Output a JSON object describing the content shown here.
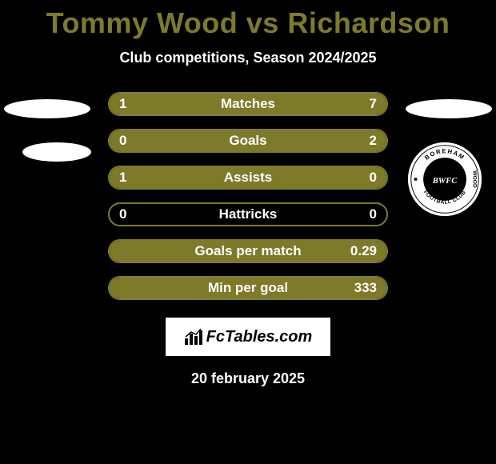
{
  "title": "Tommy Wood vs Richardson",
  "subtitle": "Club competitions, Season 2024/2025",
  "date": "20 february 2025",
  "fctables_label": "FcTables.com",
  "colors": {
    "bar_fill": "#7d7b2a",
    "bar_border": "#7d7b2a",
    "background": "#000000",
    "text": "#ffffff",
    "title_color": "#7d7b2a"
  },
  "stat_rows": [
    {
      "label": "Matches",
      "left_val": "1",
      "right_val": "7",
      "left_pct": 12,
      "right_pct": 88
    },
    {
      "label": "Goals",
      "left_val": "0",
      "right_val": "2",
      "left_pct": 0,
      "right_pct": 100
    },
    {
      "label": "Assists",
      "left_val": "1",
      "right_val": "0",
      "left_pct": 100,
      "right_pct": 0
    },
    {
      "label": "Hattricks",
      "left_val": "0",
      "right_val": "0",
      "left_pct": 0,
      "right_pct": 0
    },
    {
      "label": "Goals per match",
      "left_val": "",
      "right_val": "0.29",
      "left_pct": 0,
      "right_pct": 100
    },
    {
      "label": "Min per goal",
      "left_val": "",
      "right_val": "333",
      "left_pct": 0,
      "right_pct": 100
    }
  ],
  "club_badge": {
    "outer_text_top": "BOREHAM",
    "outer_text_bottom": "FOOTBALL CLUB",
    "outer_text_right": "WOOD",
    "center_text": "BWFC"
  }
}
